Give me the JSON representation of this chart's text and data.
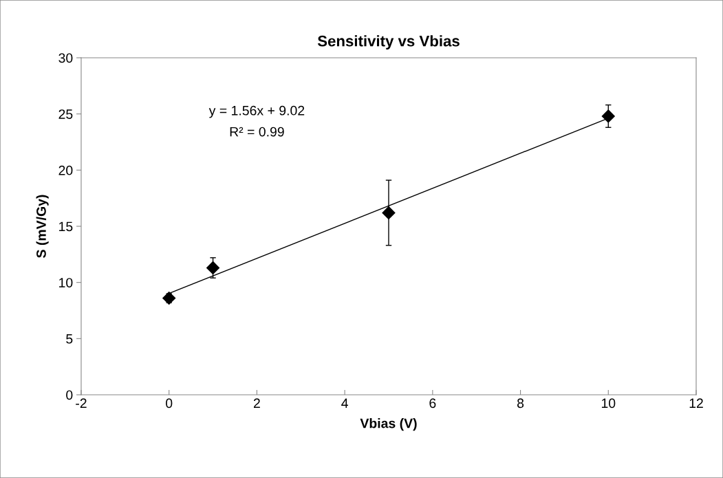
{
  "chart_data": {
    "type": "scatter",
    "title": "Sensitivity vs Vbias",
    "xlabel": "Vbias (V)",
    "ylabel": "S (mV/Gy)",
    "series": [
      {
        "color": "#000000",
        "marker": "diamond",
        "x": [
          0,
          1,
          5,
          10
        ],
        "values": [
          8.6,
          11.3,
          16.2,
          24.8
        ],
        "errors": [
          0.4,
          0.9,
          2.9,
          1.0
        ]
      },
      {
        "type": "line",
        "color": "#000000",
        "marker": "none",
        "x": [
          0,
          10
        ],
        "values": [
          9.02,
          24.62
        ]
      }
    ],
    "annotations": [
      "y = 1.56x + 9.02",
      "R² = 0.99"
    ],
    "xlim": [
      -2,
      12
    ],
    "xticks": [
      -2,
      0,
      2,
      4,
      6,
      8,
      10,
      12
    ],
    "ylim": [
      0,
      30
    ],
    "yticks": [
      0,
      5,
      10,
      15,
      20,
      25,
      30
    ],
    "grid": false,
    "legend": false
  }
}
